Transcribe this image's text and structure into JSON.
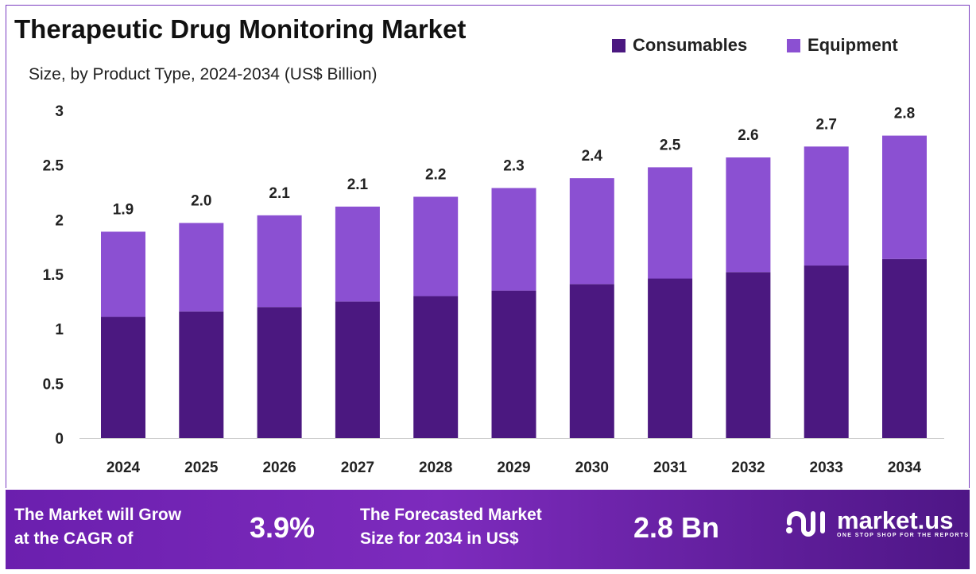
{
  "chart_data": {
    "type": "bar",
    "stacked": true,
    "title": "Therapeutic Drug Monitoring Market",
    "subtitle": "Size, by Product Type, 2024-2034 (US$ Billion)",
    "categories": [
      "2024",
      "2025",
      "2026",
      "2027",
      "2028",
      "2029",
      "2030",
      "2031",
      "2032",
      "2033",
      "2034"
    ],
    "series": [
      {
        "name": "Consumables",
        "color": "#4b1880",
        "values": [
          1.11,
          1.16,
          1.2,
          1.25,
          1.3,
          1.35,
          1.41,
          1.46,
          1.52,
          1.58,
          1.64
        ]
      },
      {
        "name": "Equipment",
        "color": "#8b50d2",
        "values": [
          0.78,
          0.81,
          0.84,
          0.87,
          0.91,
          0.94,
          0.97,
          1.02,
          1.05,
          1.09,
          1.13
        ]
      }
    ],
    "totals_labels": [
      "1.9",
      "2.0",
      "2.1",
      "2.1",
      "2.2",
      "2.3",
      "2.4",
      "2.5",
      "2.6",
      "2.7",
      "2.8"
    ],
    "yticks": [
      "0",
      "0.5",
      "1",
      "1.5",
      "2",
      "2.5",
      "3"
    ],
    "ylim": [
      0,
      3
    ],
    "grid": false,
    "legend_position": "top-right"
  },
  "footer": {
    "cagr_text_1": "The Market will Grow",
    "cagr_text_2": "at the CAGR of",
    "cagr_value": "3.9%",
    "forecast_text_1": "The Forecasted Market",
    "forecast_text_2": "Size for 2034 in US$",
    "forecast_value": "2.8 Bn",
    "brand": "market.us",
    "tagline": "ONE STOP SHOP FOR THE REPORTS"
  }
}
